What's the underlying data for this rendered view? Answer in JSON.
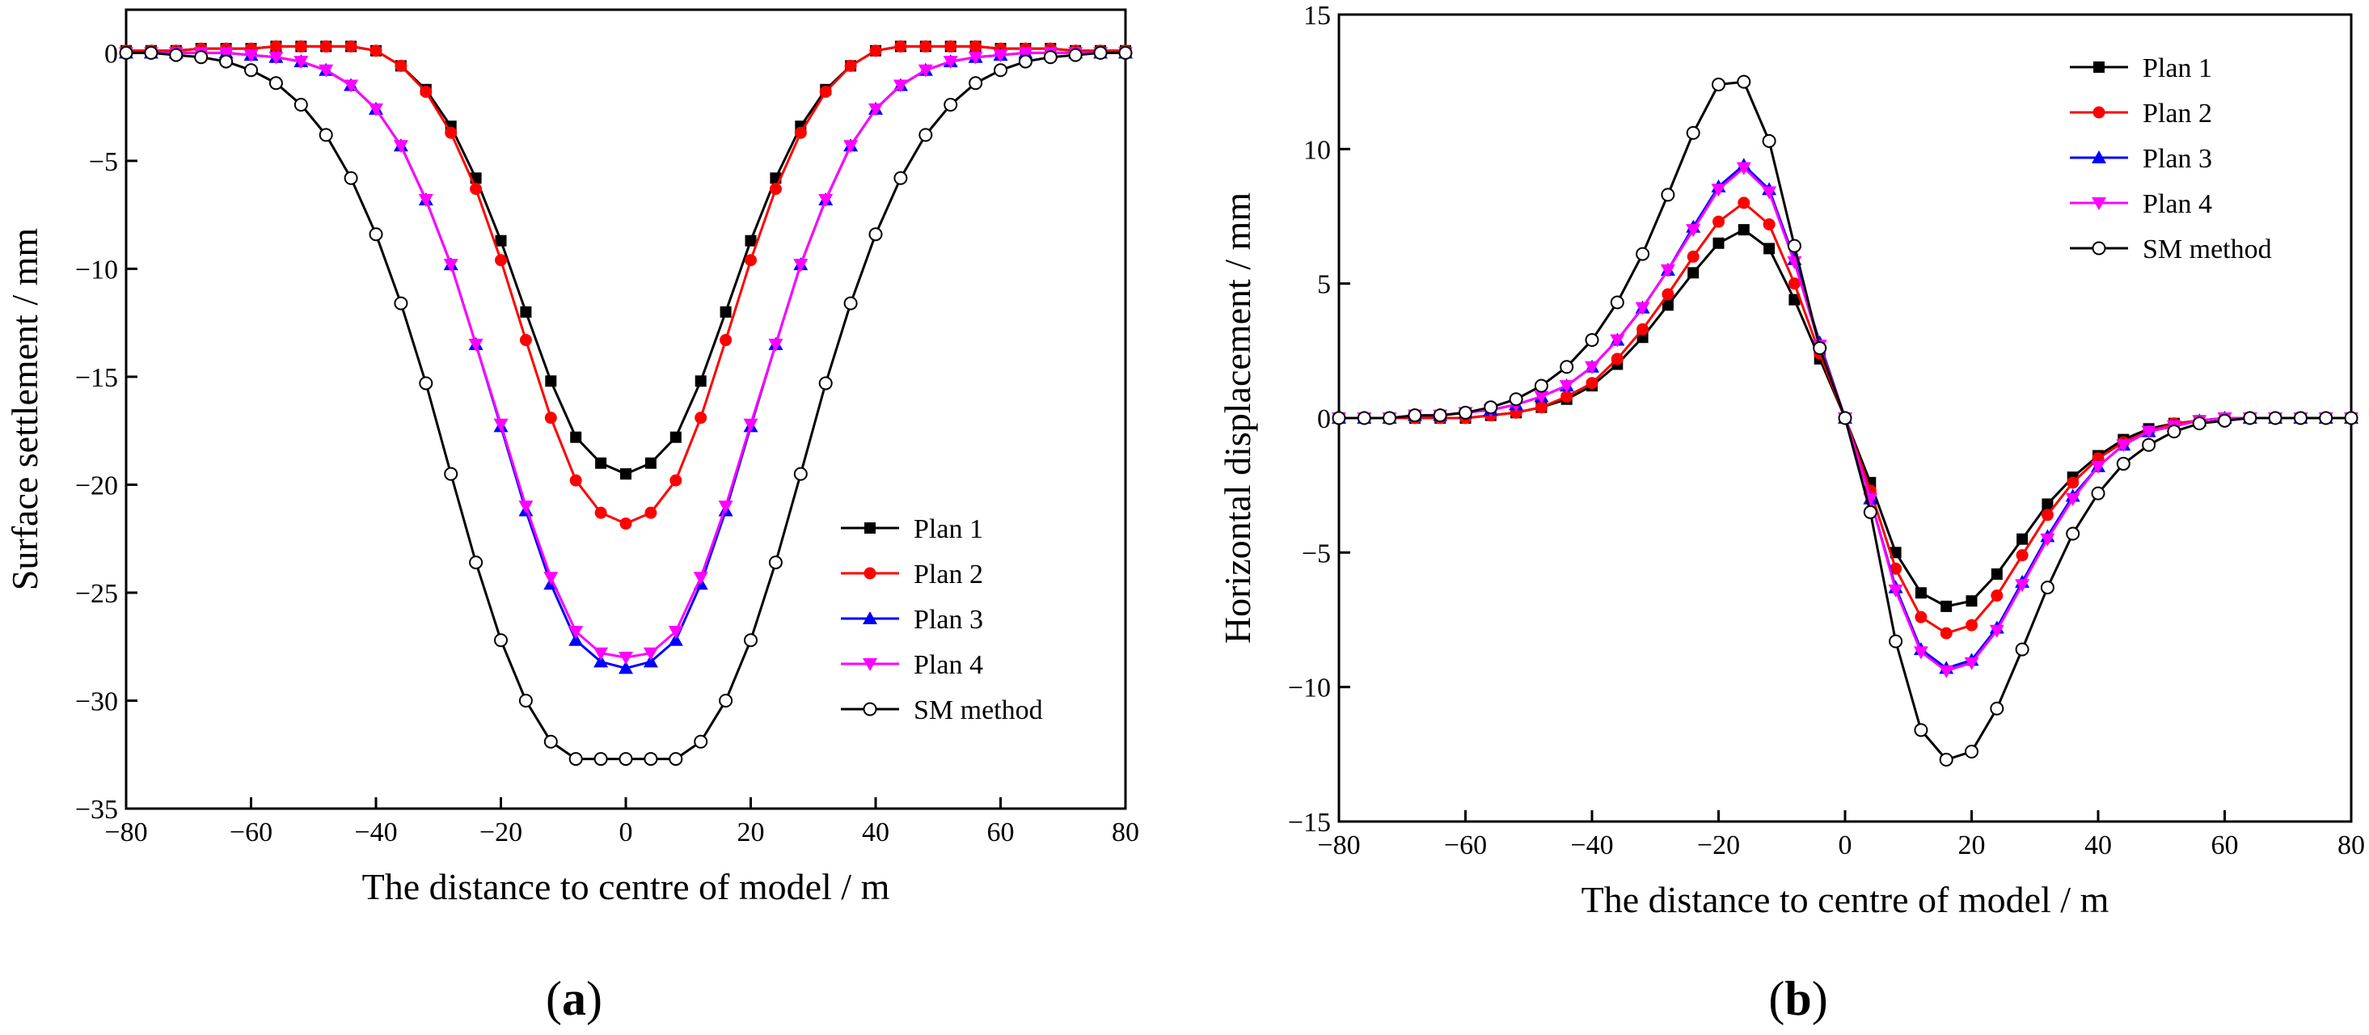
{
  "figure": {
    "panels": [
      {
        "label_open": "(",
        "label_letter": "a",
        "label_close": ")"
      },
      {
        "label_open": "(",
        "label_letter": "b",
        "label_close": ")"
      }
    ]
  },
  "chart_data": [
    {
      "type": "line",
      "panel": "a",
      "title": "",
      "xlabel": "The distance to centre of model / m",
      "ylabel": "Surface settlement / mm",
      "xlim": [
        -80,
        80
      ],
      "ylim": [
        -35,
        2
      ],
      "xticks": [
        -80,
        -60,
        -40,
        -20,
        0,
        20,
        40,
        60,
        80
      ],
      "yticks": [
        0,
        -5,
        -10,
        -15,
        -20,
        -25,
        -30,
        -35
      ],
      "xtick_labels": [
        "−80",
        "−60",
        "−40",
        "−20",
        "0",
        "20",
        "40",
        "60",
        "80"
      ],
      "ytick_labels": [
        "0",
        "−5",
        "−10",
        "−15",
        "−20",
        "−25",
        "−30",
        "−35"
      ],
      "legend_position": "lower-right",
      "x": [
        -80,
        -76,
        -72,
        -68,
        -64,
        -60,
        -56,
        -52,
        -48,
        -44,
        -40,
        -36,
        -32,
        -28,
        -24,
        -20,
        -16,
        -12,
        -8,
        -4,
        0,
        4,
        8,
        12,
        16,
        20,
        24,
        28,
        32,
        36,
        40,
        44,
        48,
        52,
        56,
        60,
        64,
        68,
        72,
        76,
        80
      ],
      "series": [
        {
          "name": "Plan 1",
          "color": "#000000",
          "marker": "square",
          "values": [
            0.1,
            0.1,
            0.1,
            0.2,
            0.2,
            0.2,
            0.3,
            0.3,
            0.3,
            0.3,
            0.1,
            -0.6,
            -1.7,
            -3.4,
            -5.8,
            -8.7,
            -12.0,
            -15.2,
            -17.8,
            -19.0,
            -19.5,
            -19.0,
            -17.8,
            -15.2,
            -12.0,
            -8.7,
            -5.8,
            -3.4,
            -1.7,
            -0.6,
            0.1,
            0.3,
            0.3,
            0.3,
            0.3,
            0.2,
            0.2,
            0.2,
            0.1,
            0.1,
            0.1
          ]
        },
        {
          "name": "Plan 2",
          "color": "#ff0000",
          "marker": "circle-filled",
          "values": [
            0.1,
            0.1,
            0.1,
            0.2,
            0.2,
            0.2,
            0.3,
            0.3,
            0.3,
            0.3,
            0.1,
            -0.6,
            -1.8,
            -3.7,
            -6.3,
            -9.6,
            -13.3,
            -16.9,
            -19.8,
            -21.3,
            -21.8,
            -21.3,
            -19.8,
            -16.9,
            -13.3,
            -9.6,
            -6.3,
            -3.7,
            -1.8,
            -0.6,
            0.1,
            0.3,
            0.3,
            0.3,
            0.3,
            0.2,
            0.2,
            0.2,
            0.1,
            0.1,
            0.1
          ]
        },
        {
          "name": "Plan 3",
          "color": "#0000ff",
          "marker": "triangle-up",
          "values": [
            0.0,
            0.0,
            0.0,
            0.0,
            0.0,
            -0.1,
            -0.2,
            -0.4,
            -0.8,
            -1.5,
            -2.6,
            -4.3,
            -6.8,
            -9.8,
            -13.5,
            -17.3,
            -21.2,
            -24.6,
            -27.2,
            -28.2,
            -28.5,
            -28.2,
            -27.2,
            -24.6,
            -21.2,
            -17.3,
            -13.5,
            -9.8,
            -6.8,
            -4.3,
            -2.6,
            -1.5,
            -0.8,
            -0.4,
            -0.2,
            -0.1,
            0.0,
            0.0,
            0.0,
            0.0,
            0.0
          ]
        },
        {
          "name": "Plan 4",
          "color": "#ff00ff",
          "marker": "triangle-down",
          "values": [
            0.0,
            0.0,
            0.0,
            0.0,
            0.0,
            -0.1,
            -0.2,
            -0.4,
            -0.8,
            -1.5,
            -2.6,
            -4.3,
            -6.8,
            -9.8,
            -13.5,
            -17.2,
            -21.0,
            -24.3,
            -26.8,
            -27.8,
            -28.0,
            -27.8,
            -26.8,
            -24.3,
            -21.0,
            -17.2,
            -13.5,
            -9.8,
            -6.8,
            -4.3,
            -2.6,
            -1.5,
            -0.8,
            -0.4,
            -0.2,
            -0.1,
            0.0,
            0.0,
            0.0,
            0.0,
            0.0
          ]
        },
        {
          "name": "SM method",
          "color": "#000000",
          "marker": "circle-open",
          "values": [
            0.0,
            0.0,
            -0.1,
            -0.2,
            -0.4,
            -0.8,
            -1.4,
            -2.4,
            -3.8,
            -5.8,
            -8.4,
            -11.6,
            -15.3,
            -19.5,
            -23.6,
            -27.2,
            -30.0,
            -31.9,
            -32.7,
            -32.7,
            -32.7,
            -32.7,
            -32.7,
            -31.9,
            -30.0,
            -27.2,
            -23.6,
            -19.5,
            -15.3,
            -11.6,
            -8.4,
            -5.8,
            -3.8,
            -2.4,
            -1.4,
            -0.8,
            -0.4,
            -0.2,
            -0.1,
            0.0,
            0.0
          ]
        }
      ]
    },
    {
      "type": "line",
      "panel": "b",
      "title": "",
      "xlabel": "The distance to centre of model / m",
      "ylabel": "Horizontal displacement / mm",
      "xlim": [
        -80,
        80
      ],
      "ylim": [
        -15,
        15
      ],
      "xticks": [
        -80,
        -60,
        -40,
        -20,
        0,
        20,
        40,
        60,
        80
      ],
      "yticks": [
        15,
        10,
        5,
        0,
        -5,
        -10,
        -15
      ],
      "xtick_labels": [
        "−80",
        "−60",
        "−40",
        "−20",
        "0",
        "20",
        "40",
        "60",
        "80"
      ],
      "ytick_labels": [
        "15",
        "10",
        "5",
        "0",
        "−5",
        "−10",
        "−15"
      ],
      "legend_position": "top-right",
      "x": [
        -80,
        -76,
        -72,
        -68,
        -64,
        -60,
        -56,
        -52,
        -48,
        -44,
        -40,
        -36,
        -32,
        -28,
        -24,
        -20,
        -16,
        -12,
        -8,
        -4,
        0,
        4,
        8,
        12,
        16,
        20,
        24,
        28,
        32,
        36,
        40,
        44,
        48,
        52,
        56,
        60,
        64,
        68,
        72,
        76,
        80
      ],
      "series": [
        {
          "name": "Plan 1",
          "color": "#000000",
          "marker": "square",
          "values": [
            0.0,
            0.0,
            0.0,
            0.0,
            0.0,
            0.0,
            0.1,
            0.2,
            0.4,
            0.7,
            1.2,
            2.0,
            3.0,
            4.2,
            5.4,
            6.5,
            7.0,
            6.3,
            4.4,
            2.2,
            0.0,
            -2.4,
            -5.0,
            -6.5,
            -7.0,
            -6.8,
            -5.8,
            -4.5,
            -3.2,
            -2.2,
            -1.4,
            -0.8,
            -0.4,
            -0.2,
            -0.1,
            0.0,
            0.0,
            0.0,
            0.0,
            0.0,
            0.0
          ]
        },
        {
          "name": "Plan 2",
          "color": "#ff0000",
          "marker": "circle-filled",
          "values": [
            0.0,
            0.0,
            0.0,
            0.0,
            0.0,
            0.0,
            0.1,
            0.2,
            0.4,
            0.8,
            1.3,
            2.2,
            3.3,
            4.6,
            6.0,
            7.3,
            8.0,
            7.2,
            5.0,
            2.4,
            0.0,
            -2.7,
            -5.6,
            -7.4,
            -8.0,
            -7.7,
            -6.6,
            -5.1,
            -3.6,
            -2.4,
            -1.5,
            -0.9,
            -0.5,
            -0.2,
            -0.1,
            0.0,
            0.0,
            0.0,
            0.0,
            0.0,
            0.0
          ]
        },
        {
          "name": "Plan 3",
          "color": "#0000ff",
          "marker": "triangle-up",
          "values": [
            0.0,
            0.0,
            0.0,
            0.1,
            0.1,
            0.2,
            0.3,
            0.5,
            0.8,
            1.2,
            1.9,
            2.9,
            4.1,
            5.5,
            7.1,
            8.6,
            9.4,
            8.5,
            5.9,
            2.8,
            0.0,
            -3.0,
            -6.3,
            -8.6,
            -9.3,
            -9.0,
            -7.8,
            -6.1,
            -4.4,
            -2.9,
            -1.8,
            -1.0,
            -0.5,
            -0.3,
            -0.1,
            0.0,
            0.0,
            0.0,
            0.0,
            0.0,
            0.0
          ]
        },
        {
          "name": "Plan 4",
          "color": "#ff00ff",
          "marker": "triangle-down",
          "values": [
            0.0,
            0.0,
            0.0,
            0.1,
            0.1,
            0.2,
            0.3,
            0.5,
            0.8,
            1.2,
            1.9,
            2.9,
            4.1,
            5.5,
            7.0,
            8.5,
            9.3,
            8.4,
            5.8,
            2.7,
            0.0,
            -3.0,
            -6.4,
            -8.7,
            -9.4,
            -9.1,
            -7.9,
            -6.2,
            -4.5,
            -3.0,
            -1.8,
            -1.0,
            -0.5,
            -0.3,
            -0.1,
            0.0,
            0.0,
            0.0,
            0.0,
            0.0,
            0.0
          ]
        },
        {
          "name": "SM method",
          "color": "#000000",
          "marker": "circle-open",
          "values": [
            0.0,
            0.0,
            0.0,
            0.1,
            0.1,
            0.2,
            0.4,
            0.7,
            1.2,
            1.9,
            2.9,
            4.3,
            6.1,
            8.3,
            10.6,
            12.4,
            12.5,
            10.3,
            6.4,
            2.6,
            0.0,
            -3.5,
            -8.3,
            -11.6,
            -12.7,
            -12.4,
            -10.8,
            -8.6,
            -6.3,
            -4.3,
            -2.8,
            -1.7,
            -1.0,
            -0.5,
            -0.2,
            -0.1,
            0.0,
            0.0,
            0.0,
            0.0,
            0.0
          ]
        }
      ]
    }
  ]
}
